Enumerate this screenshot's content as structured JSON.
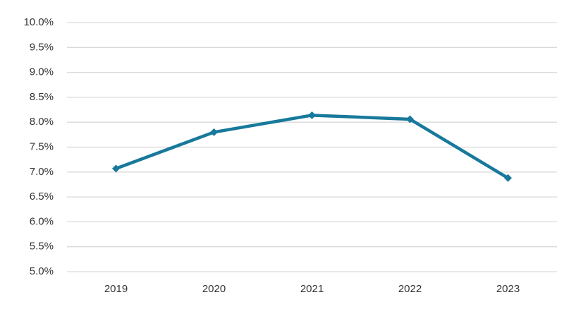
{
  "chart_data": {
    "type": "line",
    "categories": [
      "2019",
      "2020",
      "2021",
      "2022",
      "2023"
    ],
    "series": [
      {
        "color": "#17799b",
        "values": [
          7.07,
          7.8,
          8.14,
          8.06,
          6.88
        ]
      }
    ],
    "ylim": [
      5,
      10
    ],
    "yticks": [
      {
        "value": 5,
        "label": "5.0%"
      },
      {
        "value": 5.5,
        "label": "5.5%"
      },
      {
        "value": 6,
        "label": "6.0%"
      },
      {
        "value": 6.5,
        "label": "6.5%"
      },
      {
        "value": 7,
        "label": "7.0%"
      },
      {
        "value": 7.5,
        "label": "7.5%"
      },
      {
        "value": 8,
        "label": "8.0%"
      },
      {
        "value": 8.5,
        "label": "8.5%"
      },
      {
        "value": 9,
        "label": "9.0%"
      },
      {
        "value": 9.5,
        "label": "9.5%"
      },
      {
        "value": 10,
        "label": "10.0%"
      }
    ],
    "grid": true
  }
}
